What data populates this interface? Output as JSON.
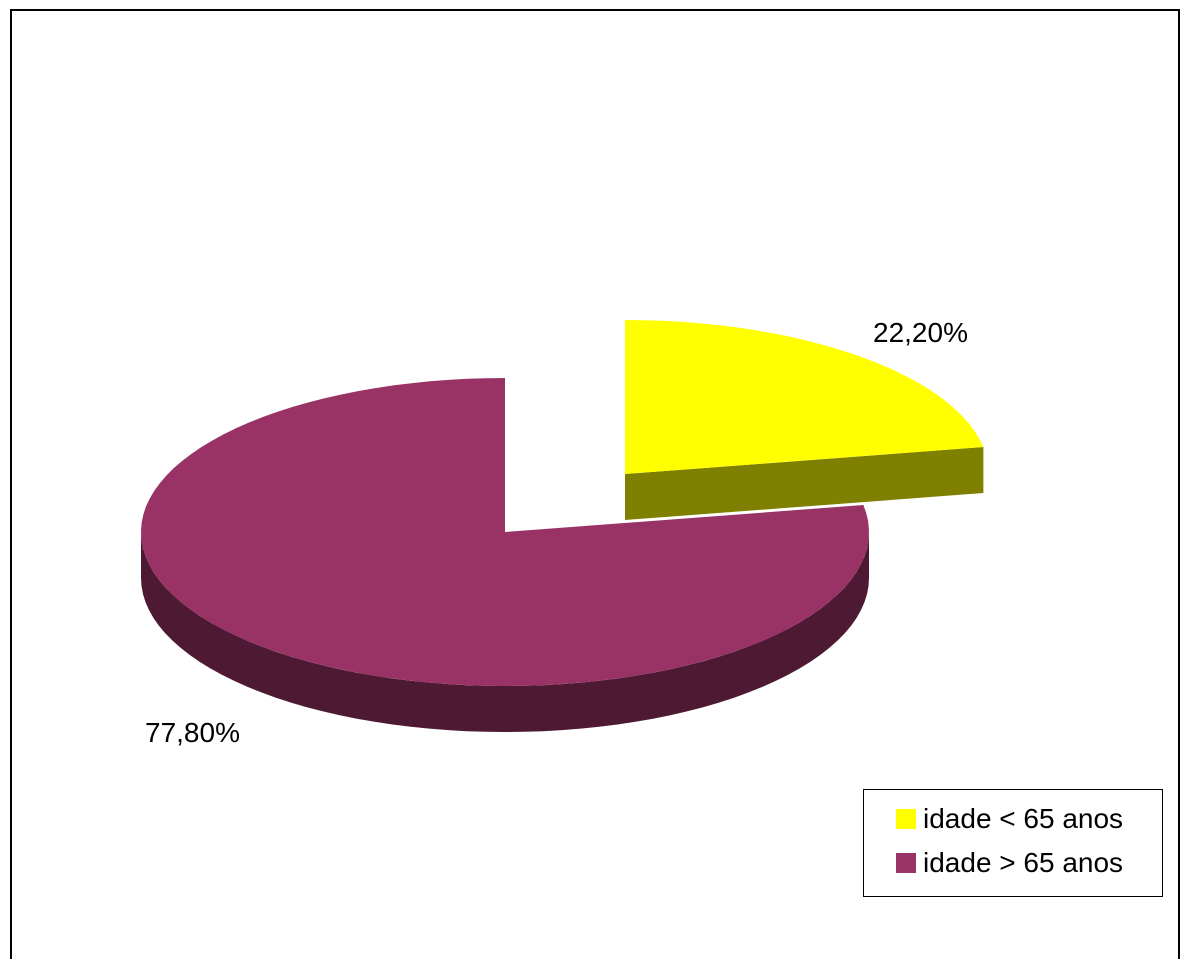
{
  "chart_data": {
    "type": "pie",
    "style": "3d-exploded",
    "slices": [
      {
        "name": "idade < 65 anos",
        "value": 22.2,
        "label": "22,20%",
        "color": "#FFFF00",
        "side_color": "#808000"
      },
      {
        "name": "idade > 65 anos",
        "value": 77.8,
        "label": "77,80%",
        "color": "#993366",
        "side_color": "#4D1933"
      }
    ],
    "legend": {
      "placement": "bottom-right",
      "entries": [
        "idade < 65 anos",
        "idade > 65 anos"
      ]
    }
  }
}
